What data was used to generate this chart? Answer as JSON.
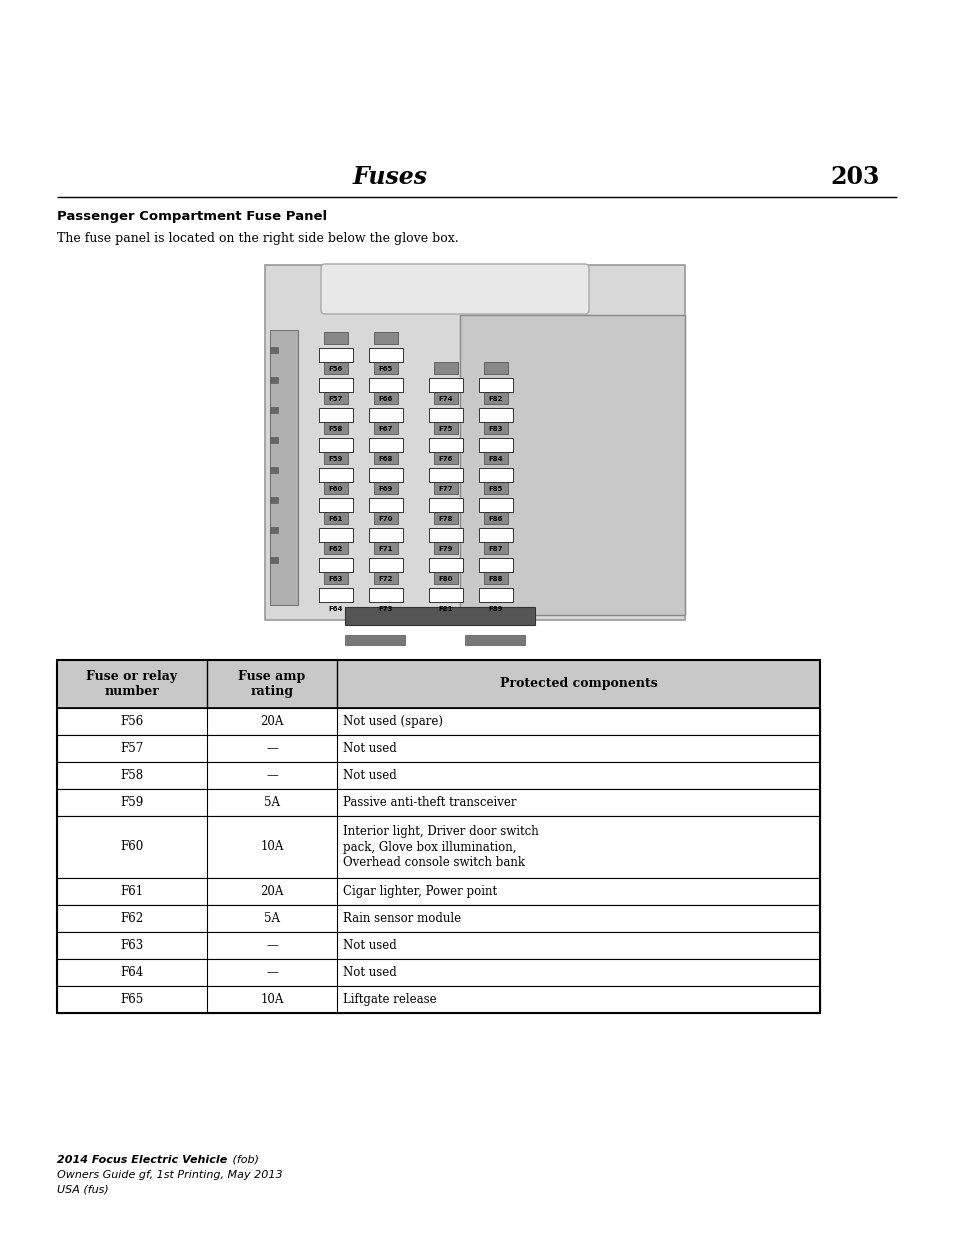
{
  "page_title": "Fuses",
  "page_number": "203",
  "section_title": "Passenger Compartment Fuse Panel",
  "section_desc": "The fuse panel is located on the right side below the glove box.",
  "table_headers": [
    "Fuse or relay\nnumber",
    "Fuse amp\nrating",
    "Protected components"
  ],
  "table_rows": [
    [
      "F56",
      "20A",
      "Not used (spare)"
    ],
    [
      "F57",
      "—",
      "Not used"
    ],
    [
      "F58",
      "—",
      "Not used"
    ],
    [
      "F59",
      "5A",
      "Passive anti-theft transceiver"
    ],
    [
      "F60",
      "10A",
      "Interior light, Driver door switch\npack, Glove box illumination,\nOverhead console switch bank"
    ],
    [
      "F61",
      "20A",
      "Cigar lighter, Power point"
    ],
    [
      "F62",
      "5A",
      "Rain sensor module"
    ],
    [
      "F63",
      "—",
      "Not used"
    ],
    [
      "F64",
      "—",
      "Not used"
    ],
    [
      "F65",
      "10A",
      "Liftgate release"
    ]
  ],
  "footer_line1_bold": "2014 Focus Electric Vehicle",
  "footer_line1_italic": " (fob)",
  "footer_line2": "Owners Guide gf, 1st Printing, May 2013",
  "footer_line3": "USA (fus)",
  "bg_color": "#ffffff",
  "header_bg": "#c8c8c8",
  "fuse_panel_fuses": [
    [
      "F56",
      "F65",
      "",
      ""
    ],
    [
      "F57",
      "F66",
      "F74",
      "F82"
    ],
    [
      "F58",
      "F67",
      "F75",
      "F83"
    ],
    [
      "F59",
      "F68",
      "F76",
      "F84"
    ],
    [
      "F60",
      "F69",
      "F77",
      "F85"
    ],
    [
      "F61",
      "F70",
      "F78",
      "F86"
    ],
    [
      "F62",
      "F71",
      "F79",
      "F87"
    ],
    [
      "F63",
      "F72",
      "F80",
      "F88"
    ],
    [
      "F64",
      "F73",
      "F81",
      "F89"
    ]
  ]
}
